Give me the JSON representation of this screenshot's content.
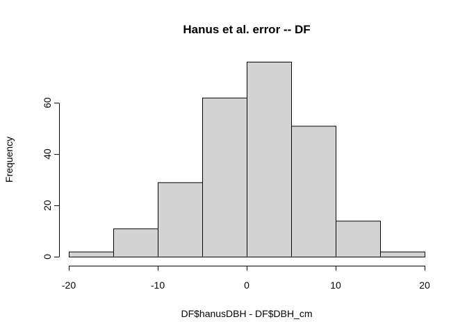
{
  "chart_data": {
    "type": "bar",
    "title": "Hanus et al. error -- DF",
    "xlabel": "DF$hanusDBH - DF$DBH_cm",
    "ylabel": "Frequency",
    "bins": [
      {
        "from": -20,
        "to": -15,
        "count": 2
      },
      {
        "from": -15,
        "to": -10,
        "count": 11
      },
      {
        "from": -10,
        "to": -5,
        "count": 29
      },
      {
        "from": -5,
        "to": 0,
        "count": 62
      },
      {
        "from": 0,
        "to": 5,
        "count": 76
      },
      {
        "from": 5,
        "to": 10,
        "count": 51
      },
      {
        "from": 10,
        "to": 15,
        "count": 14
      },
      {
        "from": 15,
        "to": 20,
        "count": 2
      }
    ],
    "xlim": [
      -20,
      20
    ],
    "ylim": [
      0,
      76
    ],
    "xticks": [
      -20,
      -10,
      0,
      10,
      20
    ],
    "yticks": [
      0,
      20,
      40,
      60
    ],
    "bar_color": "#d3d3d3",
    "grid": false
  }
}
